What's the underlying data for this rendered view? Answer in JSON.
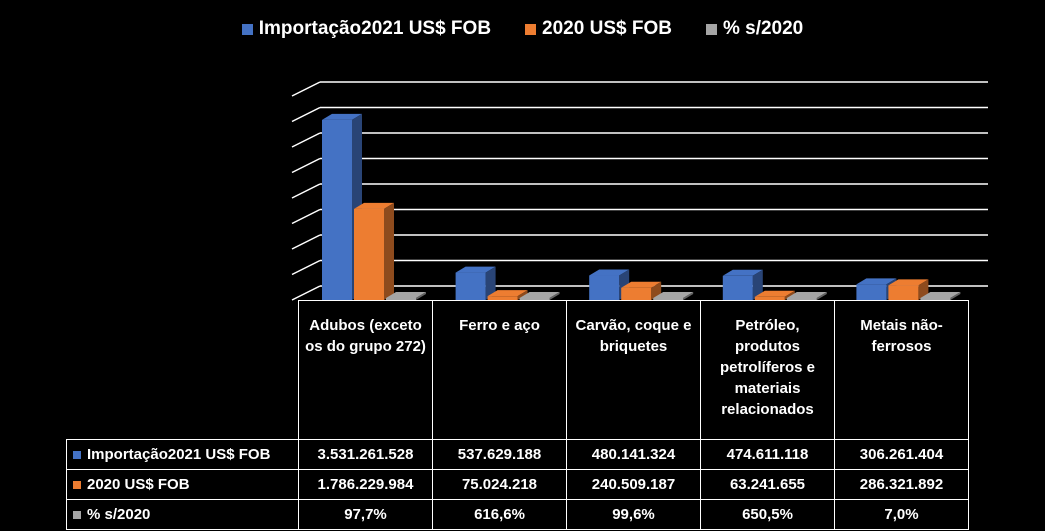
{
  "colors": {
    "series_2021": "#4472C4",
    "series_2020": "#ED7D31",
    "series_pct": "#A5A5A5",
    "background": "#000000",
    "grid": "#FFFFFF"
  },
  "legend": [
    {
      "label": "Importação2021 US$ FOB",
      "color": "#4472C4"
    },
    {
      "label": "2020 US$ FOB",
      "color": "#ED7D31"
    },
    {
      "label": "% s/2020",
      "color": "#A5A5A5"
    }
  ],
  "table": {
    "categories": [
      "Adubos (exceto os do grupo 272)",
      "Ferro e aço",
      "Carvão, coque e briquetes",
      "Petróleo, produtos petrolíferos e materiais relacionados",
      "Metais não-ferrosos"
    ],
    "rows": [
      {
        "key": "Importação2021 US$ FOB",
        "color": "#4472C4",
        "cells": [
          "3.531.261.528",
          "537.629.188",
          "480.141.324",
          "474.611.118",
          "306.261.404"
        ]
      },
      {
        "key": "2020 US$ FOB",
        "color": "#ED7D31",
        "cells": [
          "1.786.229.984",
          "75.024.218",
          "240.509.187",
          "63.241.655",
          "286.321.892"
        ]
      },
      {
        "key": "% s/2020",
        "color": "#A5A5A5",
        "cells": [
          "97,7%",
          "616,6%",
          "99,6%",
          "650,5%",
          "7,0%"
        ]
      }
    ]
  },
  "chart_data": {
    "type": "bar",
    "style": "3d-clustered-column",
    "categories": [
      "Adubos (exceto os do grupo 272)",
      "Ferro e aço",
      "Carvão, coque e briquetes",
      "Petróleo, produtos petrolíferos e materiais relacionados",
      "Metais não-ferrosos"
    ],
    "series": [
      {
        "name": "Importação2021 US$ FOB",
        "values": [
          3531261528,
          537629188,
          480141324,
          474611118,
          306261404
        ]
      },
      {
        "name": "2020 US$ FOB",
        "values": [
          1786229984,
          75024218,
          240509187,
          63241655,
          286321892
        ]
      },
      {
        "name": "% s/2020",
        "values": [
          0.977,
          6.166,
          0.996,
          6.505,
          0.07
        ]
      }
    ],
    "ylim": [
      0,
      4000000000
    ],
    "grid": true,
    "legend": "top",
    "data_table": true
  }
}
